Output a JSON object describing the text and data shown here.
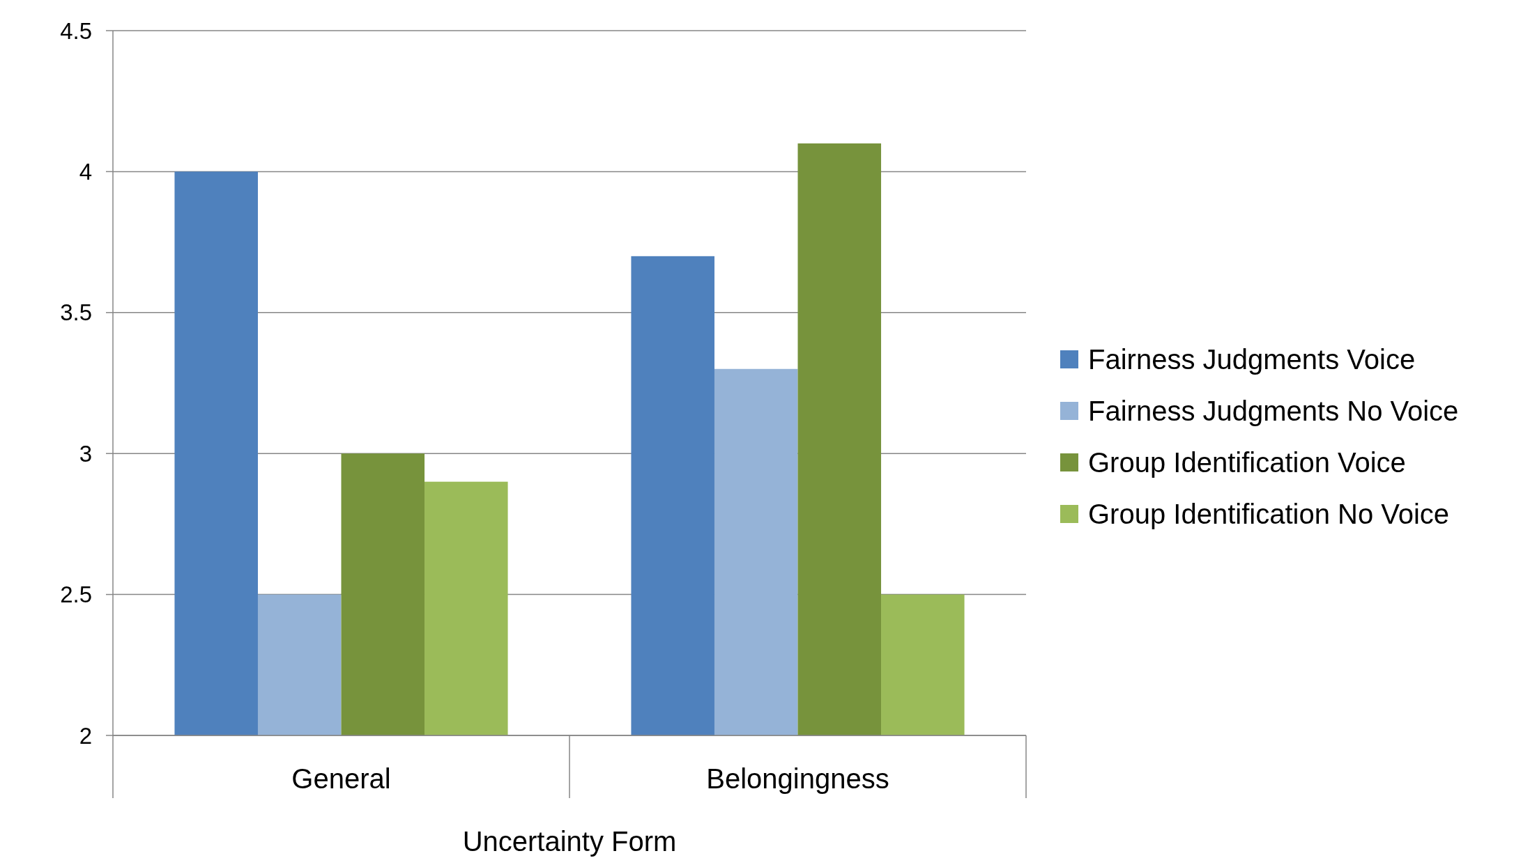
{
  "chart_data": {
    "type": "bar",
    "xlabel": "Uncertainty Form",
    "categories": [
      "General",
      "Belongingness"
    ],
    "series": [
      {
        "name": "Fairness Judgments Voice",
        "color": "#4f81bd",
        "values": [
          4,
          3.7
        ]
      },
      {
        "name": "Fairness Judgments No Voice",
        "color": "#95b3d7",
        "values": [
          2.5,
          3.3
        ]
      },
      {
        "name": "Group Identification Voice",
        "color": "#77933c",
        "values": [
          3,
          4.1
        ]
      },
      {
        "name": "Group Identification No Voice",
        "color": "#9bbb59",
        "values": [
          2.9,
          2.5
        ]
      }
    ],
    "ylim": [
      2,
      4.5
    ],
    "yticks": [
      2,
      2.5,
      3,
      3.5,
      4,
      4.5
    ],
    "grid": "y",
    "legend": "right"
  }
}
